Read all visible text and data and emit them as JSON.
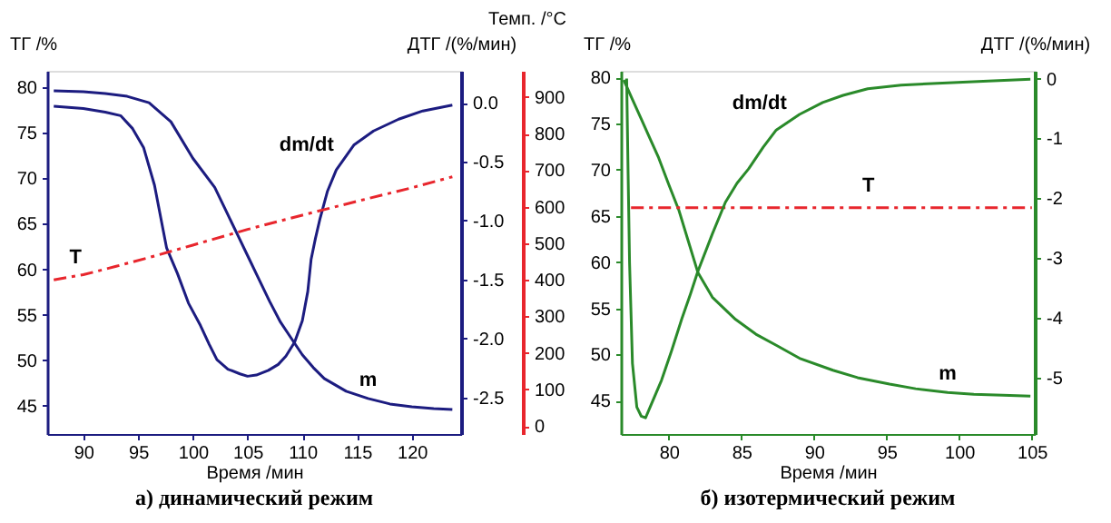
{
  "chart_data": [
    {
      "type": "line",
      "title": "а)   динамический режим",
      "xlabel": "Время /мин",
      "ylabel": "ТГ /%",
      "y2label": "ДТГ /(%/мин)",
      "y3label": "Темп. /°C",
      "xlim": [
        86.7,
        124.5
      ],
      "xticks": [
        90,
        95,
        100,
        105,
        110,
        115,
        120
      ],
      "ylim": [
        41.9,
        81.8
      ],
      "yticks": [
        45,
        50,
        55,
        60,
        65,
        70,
        75,
        80
      ],
      "y2lim": [
        -2.81,
        0.27
      ],
      "y2ticks": [
        {
          "value": 0,
          "label": "0.0"
        },
        -0.5,
        {
          "value": -1,
          "label": "-1.0"
        },
        -1.5,
        {
          "value": -2,
          "label": "-2.0"
        },
        -2.5
      ],
      "y3lim": [
        -22,
        972
      ],
      "y3ticks": [
        0,
        100,
        200,
        300,
        400,
        500,
        600,
        700,
        800,
        900
      ],
      "grid": false,
      "series": [
        {
          "name": "m",
          "color": "#1c1c80",
          "x": [
            87.3,
            90,
            92,
            94,
            96,
            98,
            100,
            102,
            103,
            104,
            105,
            106,
            107,
            108,
            109,
            110,
            111,
            112,
            114,
            116,
            118,
            120,
            122,
            123.7
          ],
          "values": [
            79.6,
            79.5,
            79.3,
            79.0,
            78.3,
            76.2,
            72.2,
            69,
            66.5,
            64,
            61.5,
            59,
            56.5,
            54.2,
            52.4,
            50.6,
            49.2,
            48,
            46.6,
            45.8,
            45.2,
            44.9,
            44.7,
            44.6
          ]
        },
        {
          "name": "dm/dt",
          "color": "#1c1c80",
          "axis": "y2",
          "x": [
            87.3,
            90,
            92,
            93.4,
            94.5,
            95.5,
            96.5,
            97.6,
            98.6,
            99.6,
            100.7,
            101.5,
            102.2,
            103.2,
            104.3,
            105,
            105.8,
            106.9,
            107.8,
            108.5,
            109.3,
            110,
            110.5,
            110.8,
            111.2,
            111.6,
            112.3,
            113.1,
            114.7,
            116.5,
            118.8,
            121,
            123.7
          ],
          "values": [
            -0.03,
            -0.05,
            -0.08,
            -0.11,
            -0.22,
            -0.38,
            -0.7,
            -1.23,
            -1.45,
            -1.7,
            -1.89,
            -2.05,
            -2.18,
            -2.26,
            -2.3,
            -2.32,
            -2.31,
            -2.27,
            -2.22,
            -2.15,
            -2.03,
            -1.85,
            -1.6,
            -1.33,
            -1.15,
            -0.99,
            -0.75,
            -0.57,
            -0.36,
            -0.24,
            -0.14,
            -0.07,
            -0.02
          ]
        },
        {
          "name": "T",
          "color": "#e8262d",
          "axis": "y3",
          "line_style": "dashed",
          "x": [
            87.3,
            90,
            93,
            96,
            100,
            105,
            110,
            115,
            120,
            123.7
          ],
          "values": [
            400,
            414,
            437,
            461,
            495,
            538,
            577,
            615,
            652,
            682
          ]
        }
      ]
    },
    {
      "type": "line",
      "title": "б)   изотермический режим",
      "xlabel": "Время /мин",
      "ylabel": "ТГ /%",
      "y2label": "ДТГ /(%/мин)",
      "xlim": [
        76.7,
        105.2
      ],
      "xticks": [
        80,
        85,
        90,
        95,
        100,
        105
      ],
      "ylim": [
        41.4,
        80.7
      ],
      "yticks": [
        45,
        50,
        55,
        60,
        65,
        70,
        75,
        80
      ],
      "y2lim": [
        -5.95,
        0.13
      ],
      "y2ticks": [
        0,
        -1,
        -2,
        -3,
        -4,
        -5
      ],
      "grid": false,
      "series": [
        {
          "name": "m",
          "color": "#2a8a2a",
          "x": [
            76.9,
            77.5,
            78.1,
            78.7,
            79.3,
            80,
            80.7,
            81.3,
            82,
            83,
            84.6,
            86,
            87.4,
            89,
            91.3,
            93,
            95.2,
            97,
            99.2,
            101,
            103,
            104.9
          ],
          "values": [
            79.7,
            77.6,
            75.5,
            73.4,
            71.3,
            68.4,
            65.6,
            62.5,
            58.9,
            56.2,
            53.8,
            52.2,
            51.0,
            49.6,
            48.3,
            47.5,
            46.8,
            46.3,
            45.9,
            45.7,
            45.6,
            45.5
          ]
        },
        {
          "name": "dm/dt",
          "color": "#2a8a2a",
          "axis": "y2",
          "x": [
            77.1,
            77.2,
            77.3,
            77.5,
            77.8,
            78.1,
            78.4,
            78.8,
            79.5,
            80.2,
            80.9,
            81.5,
            82,
            83,
            83.9,
            84.7,
            85.5,
            86.5,
            87.4,
            89,
            90.6,
            92,
            93.7,
            96,
            99.2,
            102,
            104.9
          ],
          "values": [
            0,
            -1.6,
            -3.09,
            -4.77,
            -5.5,
            -5.65,
            -5.68,
            -5.45,
            -5.05,
            -4.55,
            -4.02,
            -3.6,
            -3.23,
            -2.6,
            -2.07,
            -1.75,
            -1.51,
            -1.15,
            -0.86,
            -0.6,
            -0.4,
            -0.28,
            -0.17,
            -0.11,
            -0.07,
            -0.04,
            -0.01
          ]
        },
        {
          "name": "T",
          "color": "#e8262d",
          "line_style": "dashed",
          "x": [
            77.4,
            105
          ],
          "values": [
            65.9,
            65.9
          ]
        }
      ]
    }
  ]
}
